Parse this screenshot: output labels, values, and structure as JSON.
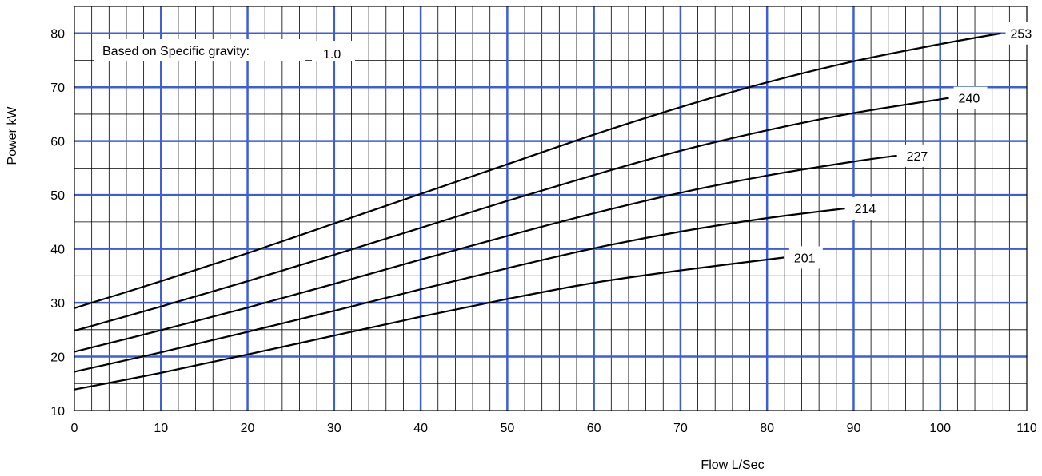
{
  "chart_data": {
    "type": "line",
    "title": "",
    "xlabel": "Flow L/Sec",
    "ylabel": "Power kW",
    "xlim": [
      0,
      110
    ],
    "ylim": [
      10,
      85
    ],
    "x_ticks": [
      "0",
      "10",
      "20",
      "30",
      "40",
      "50",
      "60",
      "70",
      "80",
      "90",
      "100",
      "110"
    ],
    "y_ticks": [
      "10",
      "20",
      "30",
      "40",
      "50",
      "60",
      "70",
      "80"
    ],
    "grid": true,
    "note": {
      "label": "Based on Specific gravity:",
      "value": "1.0"
    },
    "series": [
      {
        "name": "253",
        "x": [
          0,
          10,
          20,
          30,
          40,
          50,
          60,
          70,
          80,
          90,
          100,
          107
        ],
        "y": [
          29,
          34,
          39.2,
          44.7,
          50.2,
          55.7,
          61.2,
          66.3,
          70.9,
          74.8,
          78,
          80
        ]
      },
      {
        "name": "240",
        "x": [
          0,
          10,
          20,
          30,
          40,
          50,
          60,
          70,
          80,
          90,
          101
        ],
        "y": [
          24.8,
          29.3,
          34,
          38.9,
          43.9,
          48.9,
          53.7,
          58.2,
          62,
          65.2,
          68
        ]
      },
      {
        "name": "227",
        "x": [
          0,
          10,
          20,
          30,
          40,
          50,
          60,
          70,
          80,
          90,
          95
        ],
        "y": [
          20.9,
          24.9,
          29.1,
          33.5,
          38,
          42.4,
          46.6,
          50.4,
          53.6,
          56.2,
          57.3
        ]
      },
      {
        "name": "214",
        "x": [
          0,
          10,
          20,
          30,
          40,
          50,
          60,
          70,
          80,
          89
        ],
        "y": [
          17.2,
          20.8,
          24.6,
          28.5,
          32.5,
          36.4,
          40.1,
          43.2,
          45.7,
          47.5
        ]
      },
      {
        "name": "201",
        "x": [
          0,
          10,
          20,
          30,
          40,
          50,
          60,
          70,
          82
        ],
        "y": [
          13.9,
          17,
          20.4,
          23.9,
          27.4,
          30.7,
          33.7,
          36,
          38.4
        ]
      }
    ],
    "colors": {
      "major_grid": "#3c5ed8",
      "minor_grid": "#000000",
      "curve": "#000000",
      "background": "#ffffff"
    }
  }
}
